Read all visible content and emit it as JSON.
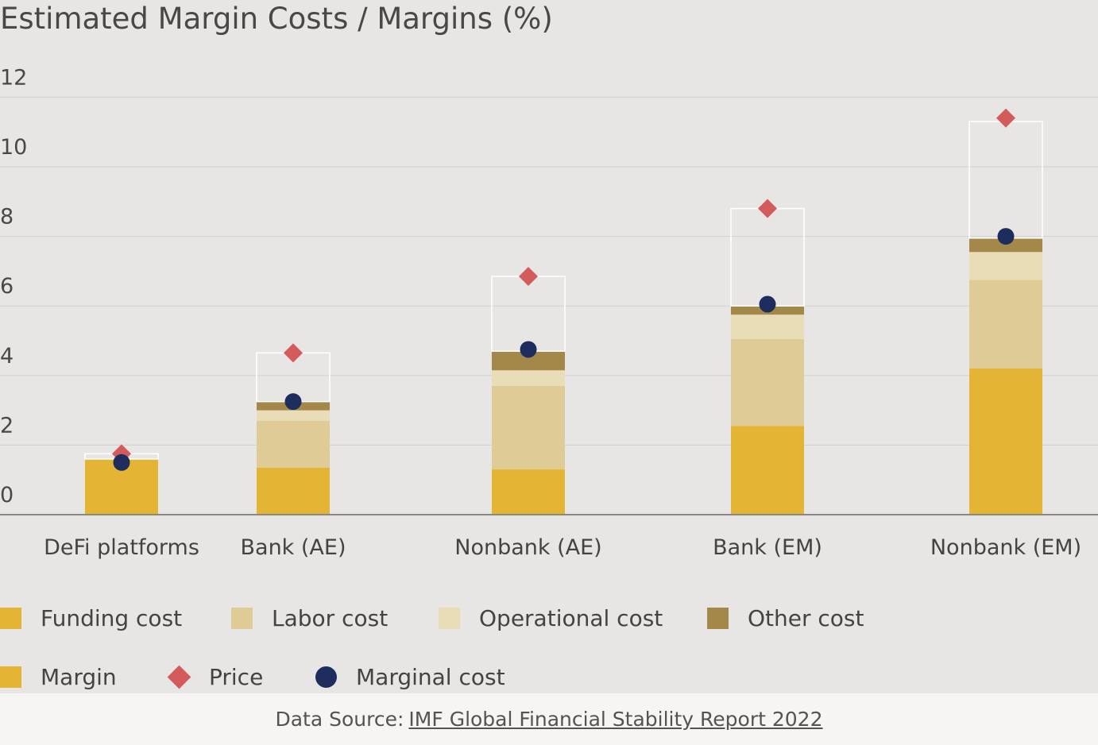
{
  "chart_data": {
    "type": "bar",
    "title": "Estimated Margin Costs / Margins (%)",
    "xlabel": "",
    "ylabel": "",
    "ylim": [
      0,
      12
    ],
    "yticks": [
      0,
      2,
      4,
      6,
      8,
      10,
      12
    ],
    "grid": true,
    "legend_position": "bottom",
    "categories": [
      "DeFi platforms",
      "Bank (AE)",
      "Nonbank (AE)",
      "Bank (EM)",
      "Nonbank (EM)"
    ],
    "series": [
      {
        "name": "Funding cost",
        "color": "#e4b434",
        "values": [
          1.6,
          1.35,
          1.3,
          2.55,
          4.2
        ]
      },
      {
        "name": "Labor cost",
        "color": "#dfcb95",
        "values": [
          0,
          1.35,
          2.4,
          2.5,
          2.55
        ]
      },
      {
        "name": "Operational cost",
        "color": "#e9ddb8",
        "values": [
          0,
          0.3,
          0.45,
          0.7,
          0.8
        ]
      },
      {
        "name": "Other cost",
        "color": "#a48849",
        "values": [
          0,
          0.25,
          0.55,
          0.25,
          0.4
        ]
      },
      {
        "name": "Margin",
        "color": "#e4b434",
        "values": [
          0.15,
          1.4,
          2.15,
          2.8,
          3.35
        ]
      }
    ],
    "points": [
      {
        "name": "Price",
        "color": "#d45b5b",
        "shape": "diamond",
        "values": [
          1.75,
          4.65,
          6.85,
          8.8,
          11.4
        ]
      },
      {
        "name": "Marginal cost",
        "color": "#1d2e5e",
        "shape": "circle",
        "values": [
          1.5,
          3.25,
          4.75,
          6.05,
          8.0
        ]
      }
    ],
    "legend": [
      {
        "label": "Funding cost",
        "color": "#e4b434",
        "shape": "square"
      },
      {
        "label": "Labor cost",
        "color": "#dfcb95",
        "shape": "square"
      },
      {
        "label": "Operational cost",
        "color": "#e9ddb8",
        "shape": "square"
      },
      {
        "label": "Other cost",
        "color": "#a48849",
        "shape": "square"
      },
      {
        "label": "Margin",
        "color": "#e4b434",
        "shape": "square"
      },
      {
        "label": "Price",
        "color": "#d45b5b",
        "shape": "diamond"
      },
      {
        "label": "Marginal cost",
        "color": "#1d2e5e",
        "shape": "circle"
      }
    ]
  },
  "footer": {
    "prefix": "Data Source:",
    "link_text": "IMF Global Financial Stability Report 2022"
  }
}
